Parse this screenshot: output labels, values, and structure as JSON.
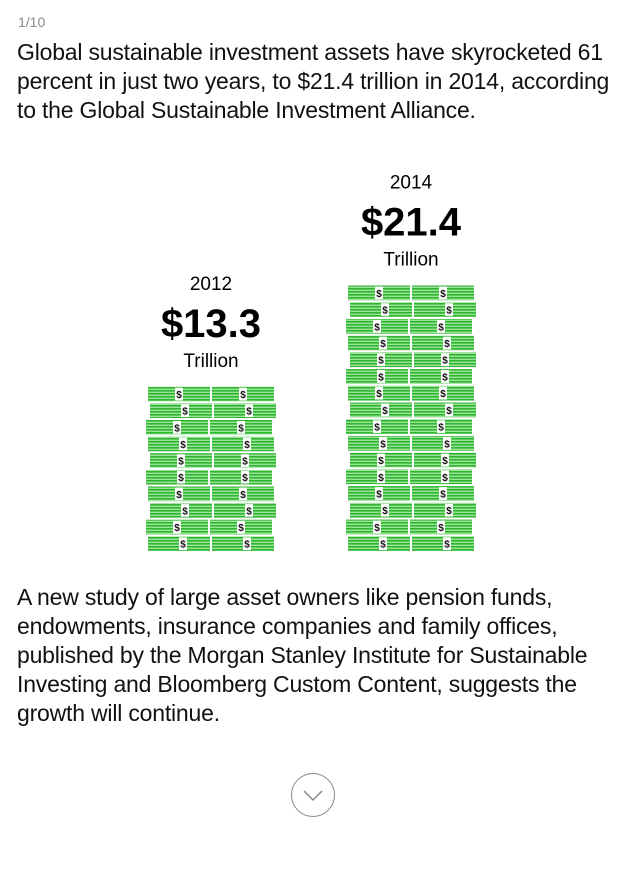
{
  "counter": "1/10",
  "intro": "Global sustainable investment assets have skyrocketed 61 percent in just two years, to $21.4 trillion in 2014, according to the Global Sustainable Investment Alliance.",
  "chart_data": {
    "type": "pictogram",
    "categories": [
      "2012",
      "2014"
    ],
    "values": [
      13.3,
      21.4
    ],
    "value_labels": [
      "$13.3",
      "$21.4"
    ],
    "unit": "Trillion",
    "color": "#3cc23c"
  },
  "body": "A new study of large asset owners like pension funds, endowments, insurance companies and family offices, published by the Morgan Stanley Institute for Sustainable Investing and Bloomberg Custom Content, suggests the growth will continue."
}
